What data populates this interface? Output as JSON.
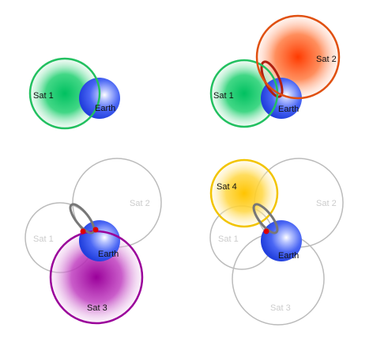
{
  "panels": [
    {
      "satellites": [
        {
          "label": "Sat 1",
          "color": "#20c060",
          "active": true
        }
      ],
      "earth_label": "Earth",
      "intersection_points": 0
    },
    {
      "satellites": [
        {
          "label": "Sat 1",
          "color": "#20c060",
          "active": true
        },
        {
          "label": "Sat 2",
          "color": "#e05010",
          "active": true
        }
      ],
      "earth_label": "Earth",
      "intersection_points": 0
    },
    {
      "satellites": [
        {
          "label": "Sat 1",
          "color": "#bbbbbb",
          "active": false
        },
        {
          "label": "Sat 2",
          "color": "#bbbbbb",
          "active": false
        },
        {
          "label": "Sat 3",
          "color": "#9a009a",
          "active": true
        }
      ],
      "earth_label": "Earth",
      "intersection_points": 2
    },
    {
      "satellites": [
        {
          "label": "Sat 4",
          "color": "#f2c400",
          "active": true
        },
        {
          "label": "Sat 1",
          "color": "#bbbbbb",
          "active": false
        },
        {
          "label": "Sat 2",
          "color": "#bbbbbb",
          "active": false
        },
        {
          "label": "Sat 3",
          "color": "#bbbbbb",
          "active": false
        }
      ],
      "earth_label": "Earth",
      "intersection_points": 1
    }
  ],
  "colors": {
    "earth": "#3355ee",
    "intersection_ring": "#777777",
    "intersection_point": "#dd0000"
  }
}
